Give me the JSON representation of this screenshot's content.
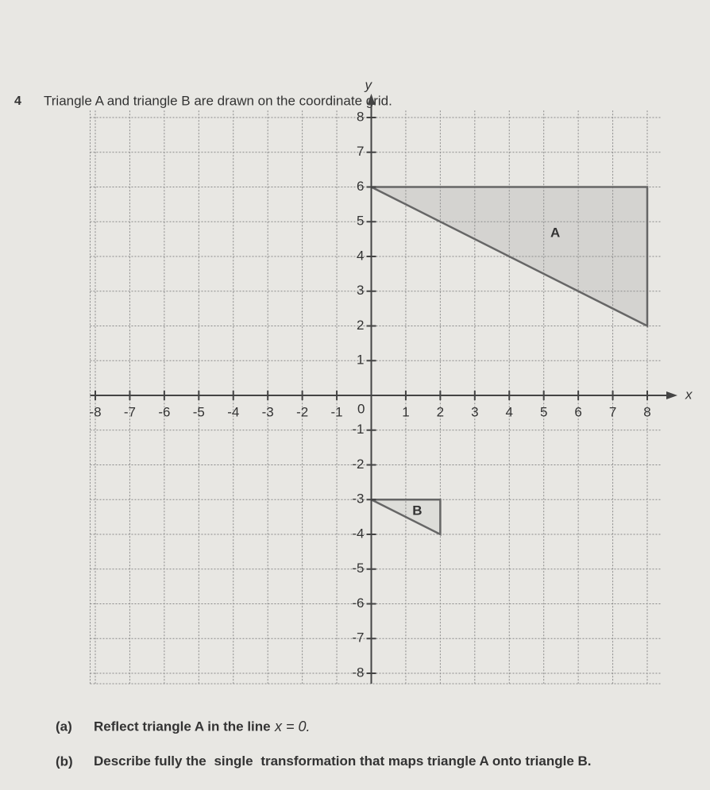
{
  "question": {
    "number": "4",
    "text": "Triangle A and triangle B are drawn on the coordinate grid."
  },
  "grid": {
    "x_label": "x",
    "y_label": "y",
    "origin": 0,
    "xlim": [
      -8,
      8
    ],
    "ylim": [
      -8,
      8
    ],
    "xticks": [
      -8,
      -7,
      -6,
      -5,
      -4,
      -3,
      -2,
      -1,
      1,
      2,
      3,
      4,
      5,
      6,
      7,
      8
    ],
    "yticks": [
      -8,
      -7,
      -6,
      -5,
      -4,
      -3,
      -2,
      -1,
      1,
      2,
      3,
      4,
      5,
      6,
      7,
      8
    ]
  },
  "shapes": [
    {
      "label": "A",
      "vertices": [
        [
          0,
          6
        ],
        [
          8,
          6
        ],
        [
          8,
          2
        ]
      ]
    },
    {
      "label": "B",
      "vertices": [
        [
          0,
          -3
        ],
        [
          2,
          -3
        ],
        [
          2,
          -4
        ]
      ]
    }
  ],
  "parts": [
    {
      "label": "(a)",
      "text": "Reflect triangle A in the line",
      "math": "x = 0."
    },
    {
      "label": "(b)",
      "before": "Describe fully the",
      "bold": "single",
      "after": "transformation that maps triangle A onto triangle B."
    }
  ]
}
